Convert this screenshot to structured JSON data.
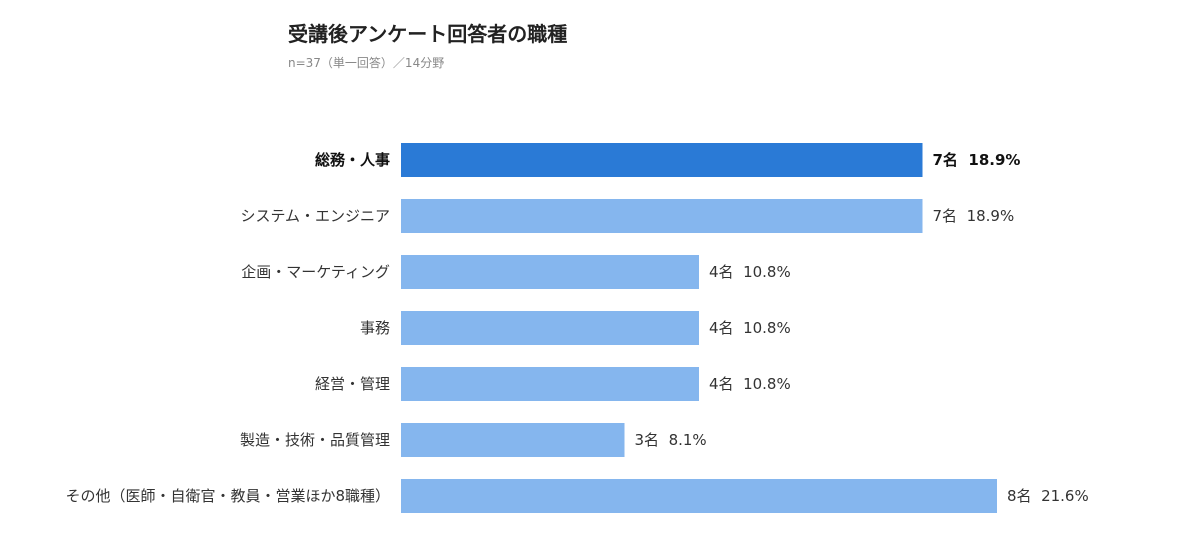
{
  "title": "受講後アンケート回答者の職種",
  "subtitle": "n=37（単一回答）／14分野",
  "colors": {
    "highlight": "#2a7ad6",
    "bar": "#85b6ee",
    "label": "#333333",
    "highlight_label": "#111111"
  },
  "chart_data": {
    "type": "bar",
    "orientation": "horizontal",
    "title": "受講後アンケート回答者の職種",
    "subtitle": "n=37（単一回答）／14分野",
    "categories": [
      "総務・人事",
      "システム・エンジニア",
      "企画・マーケティング",
      "事務",
      "経営・管理",
      "製造・技術・品質管理",
      "その他（医師・自衛官・教員・営業ほか8職種）"
    ],
    "values": [
      7,
      7,
      4,
      4,
      4,
      3,
      8
    ],
    "percentages": [
      18.9,
      18.9,
      10.8,
      10.8,
      10.8,
      8.1,
      21.6
    ],
    "value_labels": [
      "7名  18.9%",
      "7名  18.9%",
      "4名  10.8%",
      "4名  10.8%",
      "4名  10.8%",
      "3名  8.1%",
      "8名  21.6%"
    ],
    "highlight_index": 0,
    "xlabel": "",
    "ylabel": "",
    "grid": false,
    "legend": "none"
  }
}
